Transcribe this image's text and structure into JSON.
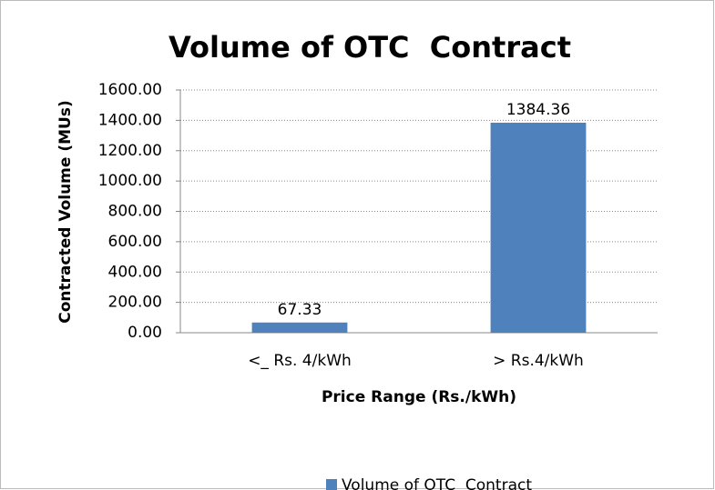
{
  "chart_data": {
    "type": "bar",
    "title": "Volume of OTC  Contract",
    "x_label": "Price Range (Rs./kWh)",
    "y_label": "Contracted Volume (MUs)",
    "categories": [
      "<_ Rs. 4/kWh",
      "> Rs.4/kWh"
    ],
    "series": [
      {
        "name": "Volume of OTC  Contract",
        "color": "#4f81bd",
        "values": [
          67.33,
          1384.36
        ]
      }
    ],
    "ylim": [
      0,
      1600
    ],
    "yticks": [
      {
        "value": 0,
        "label": "0.00"
      },
      {
        "value": 200,
        "label": "200.00"
      },
      {
        "value": 400,
        "label": "400.00"
      },
      {
        "value": 600,
        "label": "600.00"
      },
      {
        "value": 800,
        "label": "800.00"
      },
      {
        "value": 1000,
        "label": "1000.00"
      },
      {
        "value": 1200,
        "label": "1200.00"
      },
      {
        "value": 1400,
        "label": "1400.00"
      },
      {
        "value": 1600,
        "label": "1600.00"
      }
    ],
    "grid": true,
    "legend": "bottom"
  }
}
